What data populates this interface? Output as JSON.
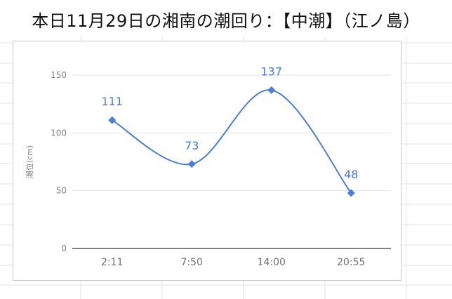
{
  "title": "本日11月29日の湘南の潮回り：【中潮】（江ノ島）",
  "colors": {
    "series": "#4a7fd8",
    "grid": "#e2e2e2",
    "axis": "#333333"
  },
  "chart_data": {
    "type": "line",
    "title": "",
    "xlabel": "",
    "ylabel": "潮位(cm)",
    "categories": [
      "2:11",
      "7:50",
      "14:00",
      "20:55"
    ],
    "series": [
      {
        "values": [
          111,
          73,
          137,
          48
        ],
        "labels": [
          "111",
          "73",
          "137",
          "48"
        ]
      }
    ],
    "ylim": [
      0,
      150
    ],
    "yticks": [
      0,
      50,
      100,
      150
    ],
    "ytick_labels": [
      "0",
      "50",
      "100",
      "150"
    ],
    "grid": true,
    "smooth": true,
    "marker": "diamond",
    "legend": "none"
  }
}
